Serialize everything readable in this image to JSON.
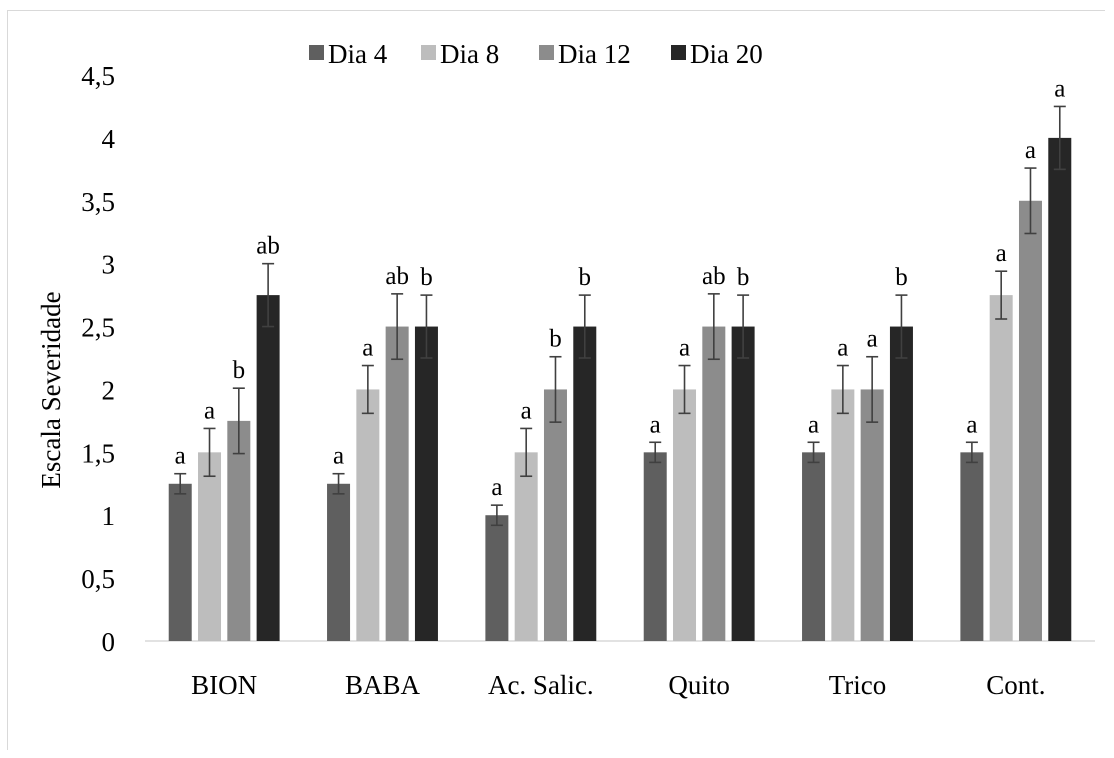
{
  "chart_data": {
    "type": "bar",
    "title": "",
    "xlabel": "",
    "ylabel": "Escala Severidade",
    "ylim": [
      0,
      4.5
    ],
    "yticks": [
      "0",
      "0,5",
      "1",
      "1,5",
      "2",
      "2,5",
      "3",
      "3,5",
      "4",
      "4,5"
    ],
    "yticks_values": [
      0,
      0.5,
      1,
      1.5,
      2,
      2.5,
      3,
      3.5,
      4,
      4.5
    ],
    "categories": [
      "BION",
      "BABA",
      "Ac. Salic.",
      "Quito",
      "Trico",
      "Cont."
    ],
    "legend_position": "top",
    "grid": false,
    "series": [
      {
        "name": "Dia 4",
        "color": "#5f5f5f",
        "values": [
          1.25,
          1.25,
          1.0,
          1.5,
          1.5,
          1.5
        ],
        "errors": [
          0.08,
          0.08,
          0.08,
          0.08,
          0.08,
          0.08
        ],
        "labels": [
          "a",
          "a",
          "a",
          "a",
          "a",
          "a"
        ]
      },
      {
        "name": "Dia 8",
        "color": "#bdbdbd",
        "values": [
          1.5,
          2.0,
          1.5,
          2.0,
          2.0,
          2.75
        ],
        "errors": [
          0.19,
          0.19,
          0.19,
          0.19,
          0.19,
          0.19
        ],
        "labels": [
          "a",
          "a",
          "a",
          "a",
          "a",
          "a"
        ]
      },
      {
        "name": "Dia 12",
        "color": "#8c8c8c",
        "values": [
          1.75,
          2.5,
          2.0,
          2.5,
          2.0,
          3.5
        ],
        "errors": [
          0.26,
          0.26,
          0.26,
          0.26,
          0.26,
          0.26
        ],
        "labels": [
          "b",
          "ab",
          "b",
          "ab",
          "a",
          "a"
        ]
      },
      {
        "name": "Dia 20",
        "color": "#262626",
        "values": [
          2.75,
          2.5,
          2.5,
          2.5,
          2.5,
          4.0
        ],
        "errors": [
          0.25,
          0.25,
          0.25,
          0.25,
          0.25,
          0.25
        ],
        "labels": [
          "ab",
          "b",
          "b",
          "b",
          "b",
          "a"
        ]
      }
    ]
  }
}
